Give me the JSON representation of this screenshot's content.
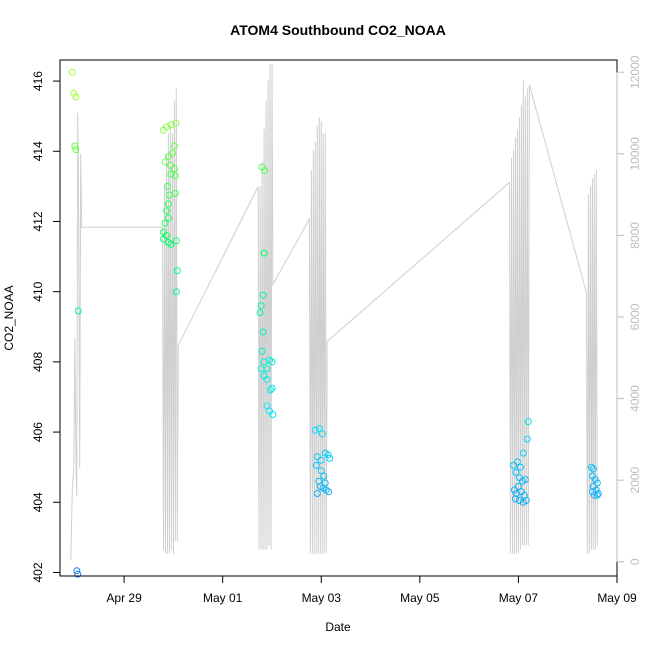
{
  "chart_data": {
    "type": "scatter",
    "title": "ATOM4 Southbound CO2_NOAA",
    "xlabel": "Date",
    "ylabel": "CO2_NOAA",
    "xlim": [
      -1.3,
      10.0
    ],
    "ylim": [
      401.9,
      416.6
    ],
    "y2lim": [
      -350,
      12300
    ],
    "x_ticks": [
      {
        "value": 0,
        "label": "Apr 29"
      },
      {
        "value": 2,
        "label": "May 01"
      },
      {
        "value": 4,
        "label": "May 03"
      },
      {
        "value": 6,
        "label": "May 05"
      },
      {
        "value": 8,
        "label": "May 07"
      },
      {
        "value": 10,
        "label": "May 09"
      }
    ],
    "y_ticks": [
      402,
      404,
      406,
      408,
      410,
      412,
      414,
      416
    ],
    "y2_ticks": [
      0,
      2000,
      4000,
      6000,
      8000,
      10000,
      12000
    ],
    "x_unit": "days since Apr 29",
    "point_color_scale": {
      "low": 402,
      "high": 416,
      "colors": [
        "#1e7cf0",
        "#00eaff",
        "#00ff66",
        "#b4ff30"
      ]
    },
    "altitude_color": "#cfcfcf",
    "grid": false,
    "series": [
      {
        "name": "CO2_NOAA",
        "kind": "points",
        "points": [
          [
            -1.05,
            416.25
          ],
          [
            -1.02,
            415.65
          ],
          [
            -0.98,
            415.55
          ],
          [
            -1.0,
            414.15
          ],
          [
            -0.98,
            414.05
          ],
          [
            -0.93,
            409.45
          ],
          [
            -0.96,
            402.05
          ],
          [
            -0.94,
            401.95
          ],
          [
            0.8,
            414.6
          ],
          [
            0.86,
            414.7
          ],
          [
            0.95,
            414.75
          ],
          [
            1.05,
            414.8
          ],
          [
            1.02,
            414.15
          ],
          [
            0.98,
            413.95
          ],
          [
            0.9,
            413.85
          ],
          [
            0.84,
            413.7
          ],
          [
            0.94,
            413.6
          ],
          [
            1.02,
            413.5
          ],
          [
            0.95,
            413.35
          ],
          [
            1.04,
            413.3
          ],
          [
            0.88,
            413.0
          ],
          [
            0.92,
            412.75
          ],
          [
            1.04,
            412.8
          ],
          [
            0.9,
            412.5
          ],
          [
            0.86,
            412.3
          ],
          [
            0.9,
            412.1
          ],
          [
            0.83,
            411.95
          ],
          [
            0.8,
            411.7
          ],
          [
            0.86,
            411.6
          ],
          [
            0.8,
            411.5
          ],
          [
            0.9,
            411.4
          ],
          [
            0.95,
            411.35
          ],
          [
            1.06,
            411.45
          ],
          [
            1.08,
            410.6
          ],
          [
            1.06,
            410.0
          ],
          [
            2.8,
            413.55
          ],
          [
            2.85,
            413.45
          ],
          [
            2.84,
            411.1
          ],
          [
            2.82,
            409.9
          ],
          [
            2.78,
            409.6
          ],
          [
            2.76,
            409.4
          ],
          [
            2.82,
            408.85
          ],
          [
            2.8,
            408.3
          ],
          [
            2.84,
            408.0
          ],
          [
            2.9,
            407.8
          ],
          [
            2.95,
            408.05
          ],
          [
            3.0,
            408.0
          ],
          [
            2.78,
            407.8
          ],
          [
            2.84,
            407.6
          ],
          [
            2.9,
            407.5
          ],
          [
            2.97,
            407.2
          ],
          [
            3.0,
            407.25
          ],
          [
            2.9,
            406.75
          ],
          [
            2.95,
            406.6
          ],
          [
            3.02,
            406.5
          ],
          [
            3.88,
            406.05
          ],
          [
            3.96,
            406.1
          ],
          [
            4.02,
            405.95
          ],
          [
            3.92,
            405.3
          ],
          [
            4.0,
            405.2
          ],
          [
            4.08,
            405.4
          ],
          [
            4.14,
            405.35
          ],
          [
            4.17,
            405.25
          ],
          [
            3.9,
            405.05
          ],
          [
            4.0,
            404.9
          ],
          [
            4.05,
            404.75
          ],
          [
            3.95,
            404.6
          ],
          [
            4.08,
            404.55
          ],
          [
            3.98,
            404.45
          ],
          [
            4.04,
            404.4
          ],
          [
            3.92,
            404.25
          ],
          [
            4.1,
            404.35
          ],
          [
            4.15,
            404.3
          ],
          [
            7.9,
            405.05
          ],
          [
            7.98,
            405.15
          ],
          [
            8.04,
            405.0
          ],
          [
            8.1,
            405.4
          ],
          [
            8.18,
            405.8
          ],
          [
            8.2,
            406.3
          ],
          [
            7.95,
            404.85
          ],
          [
            8.02,
            404.7
          ],
          [
            8.08,
            404.6
          ],
          [
            8.14,
            404.65
          ],
          [
            7.92,
            404.35
          ],
          [
            7.96,
            404.25
          ],
          [
            8.0,
            404.45
          ],
          [
            8.06,
            404.3
          ],
          [
            8.12,
            404.2
          ],
          [
            7.94,
            404.1
          ],
          [
            8.02,
            404.05
          ],
          [
            8.1,
            404.0
          ],
          [
            8.16,
            404.05
          ],
          [
            9.48,
            405.0
          ],
          [
            9.52,
            404.95
          ],
          [
            9.5,
            404.75
          ],
          [
            9.56,
            404.65
          ],
          [
            9.6,
            404.55
          ],
          [
            9.52,
            404.45
          ],
          [
            9.58,
            404.35
          ],
          [
            9.62,
            404.25
          ],
          [
            9.5,
            404.3
          ],
          [
            9.54,
            404.2
          ],
          [
            9.6,
            404.2
          ]
        ]
      },
      {
        "name": "Altitude",
        "kind": "line",
        "axis": "right",
        "points": [
          [
            -1.08,
            50
          ],
          [
            -1.05,
            1800
          ],
          [
            -1.02,
            2300
          ],
          [
            -1.0,
            5500
          ],
          [
            -0.98,
            2800
          ],
          [
            -0.96,
            1600
          ],
          [
            -0.94,
            11000
          ],
          [
            -0.92,
            8600
          ],
          [
            -0.9,
            2300
          ],
          [
            -0.88,
            10000
          ],
          [
            -0.86,
            8200
          ],
          [
            0.78,
            8200
          ],
          [
            0.8,
            300
          ],
          [
            0.82,
            9200
          ],
          [
            0.84,
            200
          ],
          [
            0.86,
            10000
          ],
          [
            0.88,
            200
          ],
          [
            0.9,
            10500
          ],
          [
            0.92,
            200
          ],
          [
            0.94,
            10700
          ],
          [
            0.96,
            300
          ],
          [
            0.98,
            10500
          ],
          [
            1.0,
            200
          ],
          [
            1.02,
            11300
          ],
          [
            1.04,
            500
          ],
          [
            1.06,
            11600
          ],
          [
            1.08,
            500
          ],
          [
            1.1,
            5300
          ],
          [
            2.72,
            9200
          ],
          [
            2.74,
            300
          ],
          [
            2.76,
            9200
          ],
          [
            2.78,
            300
          ],
          [
            2.8,
            9800
          ],
          [
            2.82,
            300
          ],
          [
            2.84,
            10600
          ],
          [
            2.86,
            300
          ],
          [
            2.88,
            11300
          ],
          [
            2.9,
            300
          ],
          [
            2.92,
            11800
          ],
          [
            2.94,
            400
          ],
          [
            2.96,
            12200
          ],
          [
            2.98,
            300
          ],
          [
            3.0,
            12200
          ],
          [
            3.02,
            6800
          ],
          [
            3.76,
            8400
          ],
          [
            3.78,
            200
          ],
          [
            3.8,
            9600
          ],
          [
            3.82,
            200
          ],
          [
            3.84,
            10100
          ],
          [
            3.86,
            200
          ],
          [
            3.88,
            10300
          ],
          [
            3.9,
            200
          ],
          [
            3.92,
            10700
          ],
          [
            3.94,
            200
          ],
          [
            3.96,
            10900
          ],
          [
            3.98,
            200
          ],
          [
            4.0,
            10800
          ],
          [
            4.02,
            200
          ],
          [
            4.04,
            10500
          ],
          [
            4.06,
            200
          ],
          [
            4.08,
            10500
          ],
          [
            4.1,
            200
          ],
          [
            4.12,
            5400
          ],
          [
            7.82,
            9300
          ],
          [
            7.84,
            200
          ],
          [
            7.86,
            9900
          ],
          [
            7.88,
            200
          ],
          [
            7.9,
            10100
          ],
          [
            7.92,
            200
          ],
          [
            7.94,
            10400
          ],
          [
            7.96,
            200
          ],
          [
            7.98,
            10600
          ],
          [
            8.0,
            200
          ],
          [
            8.02,
            10900
          ],
          [
            8.04,
            300
          ],
          [
            8.06,
            11200
          ],
          [
            8.08,
            400
          ],
          [
            8.1,
            11800
          ],
          [
            8.12,
            400
          ],
          [
            8.14,
            11400
          ],
          [
            8.16,
            400
          ],
          [
            8.18,
            11600
          ],
          [
            8.2,
            400
          ],
          [
            8.22,
            11700
          ],
          [
            9.38,
            6600
          ],
          [
            9.4,
            200
          ],
          [
            9.42,
            9000
          ],
          [
            9.44,
            200
          ],
          [
            9.46,
            9200
          ],
          [
            9.48,
            300
          ],
          [
            9.5,
            9400
          ],
          [
            9.52,
            300
          ],
          [
            9.54,
            9500
          ],
          [
            9.56,
            300
          ],
          [
            9.58,
            9600
          ],
          [
            9.6,
            400
          ]
        ]
      }
    ]
  }
}
